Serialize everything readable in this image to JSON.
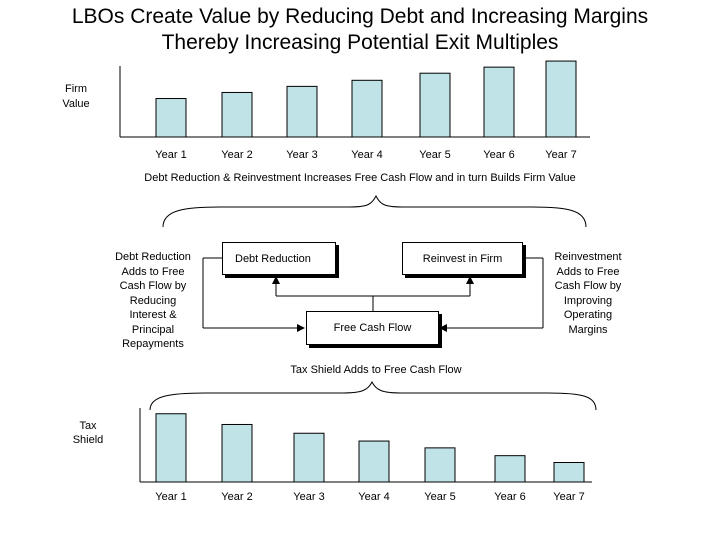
{
  "title": {
    "line1": "LBOs Create Value by Reducing Debt and Increasing Margins",
    "line2": "Thereby Increasing Potential Exit Multiples"
  },
  "colors": {
    "bar_fill": "#bfe3e6",
    "stroke": "#000000"
  },
  "chart_data": [
    {
      "type": "bar",
      "ylabel": "Firm Value",
      "categories": [
        "Year 1",
        "Year 2",
        "Year 3",
        "Year 4",
        "Year 5",
        "Year 6",
        "Year 7"
      ],
      "values": [
        38,
        44,
        50,
        56,
        63,
        69,
        75
      ],
      "ylim": [
        0,
        80
      ],
      "trend": "increasing"
    },
    {
      "type": "bar",
      "ylabel": "Tax Shield",
      "categories": [
        "Year 1",
        "Year 2",
        "Year 3",
        "Year 4",
        "Year 5",
        "Year 6",
        "Year 7"
      ],
      "values": [
        70,
        59,
        50,
        42,
        35,
        27,
        20
      ],
      "ylim": [
        0,
        80
      ],
      "trend": "decreasing"
    }
  ],
  "diagram": {
    "heading": "Debt Reduction & Reinvestment Increases Free Cash Flow and in turn Builds Firm Value",
    "left_note": "Debt Reduction\nAdds to Free\nCash Flow by\nReducing\nInterest &\nPrincipal\nRepayments",
    "right_note": "Reinvestment\nAdds to Free\nCash Flow by\nImproving\nOperating\nMargins",
    "box_debt_reduction": "Debt Reduction",
    "box_reinvest": "Reinvest in Firm",
    "box_fcf": "Free Cash Flow",
    "tax_caption": "Tax Shield Adds to Free Cash Flow"
  }
}
